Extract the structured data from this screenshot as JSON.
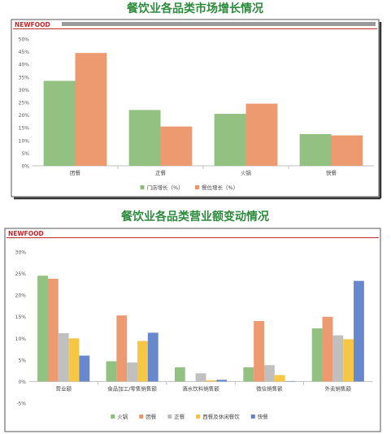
{
  "charts": [
    {
      "title": "餐饮业各品类市场增长情况",
      "brand": "NEWFOOD",
      "chart_data": {
        "type": "bar",
        "categories": [
          "团餐",
          "正餐",
          "火锅",
          "快餐"
        ],
        "series": [
          {
            "name": "门店增长（%）",
            "color": "#8CBE7A",
            "values": [
              33.5,
              22,
              20.5,
              12.5
            ]
          },
          {
            "name": "餐位增长（%）",
            "color": "#EC9569",
            "values": [
              44.5,
              15.5,
              24.5,
              12
            ]
          }
        ],
        "y_ticks": [
          "0%",
          "5%",
          "10%",
          "15%",
          "20%",
          "25%",
          "30%",
          "35%",
          "40%",
          "45%",
          "50%"
        ],
        "ylim": [
          0,
          50
        ],
        "legend": "bottom",
        "grid": false
      }
    },
    {
      "title": "餐饮业各品类营业额变动情况",
      "brand": "NEWFOOD",
      "chart_data": {
        "type": "bar",
        "categories": [
          "营业额",
          "食品加工/零售销售额",
          "酒水饮料销售额",
          "微信销售额",
          "外卖销售额"
        ],
        "series": [
          {
            "name": "火锅",
            "color": "#8CBE7A",
            "values": [
              24.5,
              4.7,
              3.3,
              3.3,
              12.3
            ]
          },
          {
            "name": "团餐",
            "color": "#EC9569",
            "values": [
              23.8,
              15.3,
              0,
              14,
              15
            ]
          },
          {
            "name": "正餐",
            "color": "#BDBDBD",
            "values": [
              11.2,
              4.4,
              1.9,
              3.8,
              10.7
            ]
          },
          {
            "name": "西餐及休闲餐饮",
            "color": "#F5C33B",
            "values": [
              10,
              9.4,
              0.3,
              1.5,
              9.8
            ]
          },
          {
            "name": "快餐",
            "color": "#5F82C9",
            "values": [
              6,
              11.3,
              0.4,
              0.1,
              23.3
            ]
          }
        ],
        "y_ticks": [
          "-5%",
          "0%",
          "5%",
          "10%",
          "15%",
          "20%",
          "25%",
          "30%"
        ],
        "ylim": [
          -5,
          30
        ],
        "legend": "bottom",
        "grid": false
      }
    }
  ]
}
